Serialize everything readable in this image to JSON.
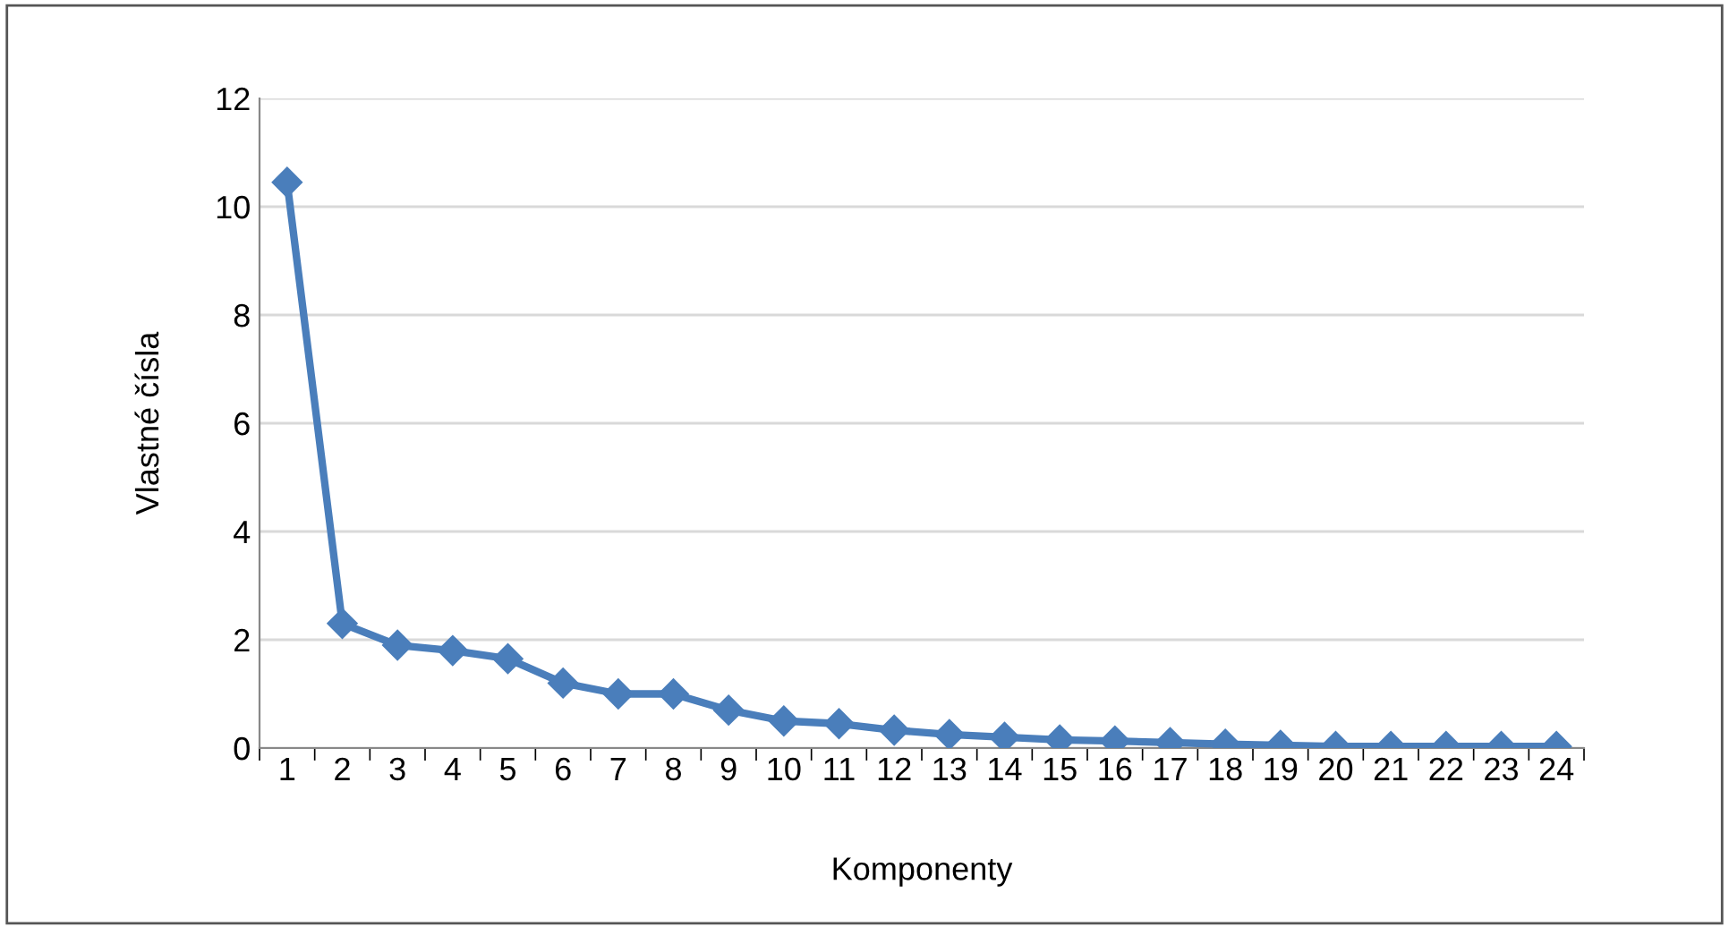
{
  "chart_data": {
    "type": "line",
    "xlabel": "Komponenty",
    "ylabel": "Vlastné čísla",
    "categories": [
      "1",
      "2",
      "3",
      "4",
      "5",
      "6",
      "7",
      "8",
      "9",
      "10",
      "11",
      "12",
      "13",
      "14",
      "15",
      "16",
      "17",
      "18",
      "19",
      "20",
      "21",
      "22",
      "23",
      "24"
    ],
    "series": [
      {
        "color": "#4a7ebb",
        "values": [
          10.45,
          2.3,
          1.9,
          1.8,
          1.65,
          1.2,
          1.0,
          1.0,
          0.7,
          0.5,
          0.45,
          0.33,
          0.25,
          0.2,
          0.15,
          0.13,
          0.1,
          0.07,
          0.05,
          0.03,
          0.03,
          0.03,
          0.03,
          0.03
        ]
      }
    ],
    "ylim": [
      0,
      12
    ],
    "yticks": [
      0,
      2,
      4,
      6,
      8,
      10,
      12
    ],
    "grid": "y",
    "marker": "diamond",
    "line_style": "solid",
    "legend": false
  }
}
